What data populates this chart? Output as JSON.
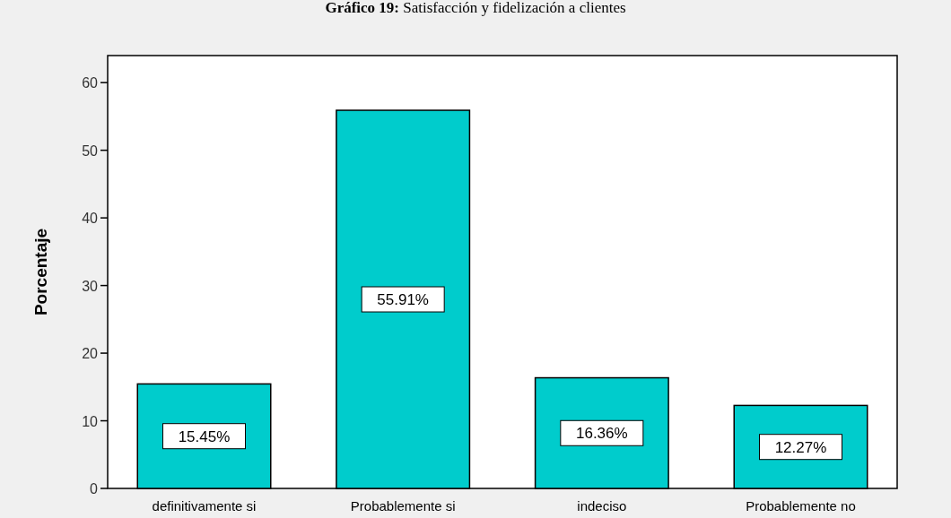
{
  "chart_data": {
    "type": "bar",
    "title": "Gráfico 19: Satisfacción y fidelización a clientes",
    "ylabel": "Porcentaje",
    "categories": [
      "definitivamente si",
      "Probablemente si",
      "indeciso",
      "Probablemente no"
    ],
    "values": [
      15.45,
      55.91,
      16.36,
      12.27
    ],
    "value_labels": [
      "15.45%",
      "55.91%",
      "16.36%",
      "12.27%"
    ],
    "color": "#00cccc",
    "ylim": [
      0,
      64
    ],
    "yticks": [
      0,
      10,
      20,
      30,
      40,
      50,
      60
    ],
    "grid": false
  }
}
